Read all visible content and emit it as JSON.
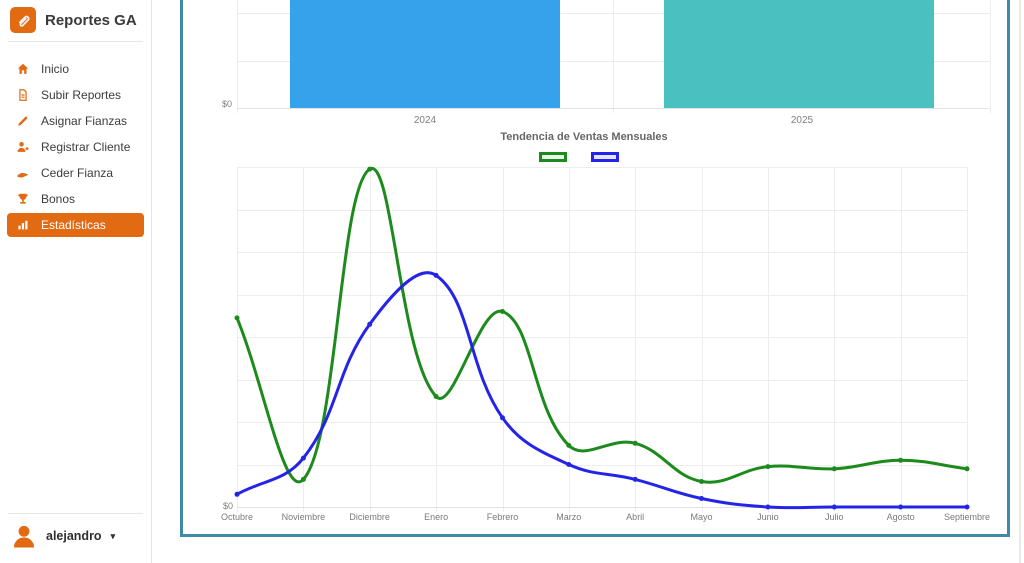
{
  "app": {
    "title": "Reportes GA"
  },
  "sidebar": {
    "items": [
      {
        "label": "Inicio",
        "icon": "home-icon",
        "active": false
      },
      {
        "label": "Subir Reportes",
        "icon": "file-icon",
        "active": false
      },
      {
        "label": "Asignar Fianzas",
        "icon": "pencil-icon",
        "active": false
      },
      {
        "label": "Registrar Cliente",
        "icon": "user-plus-icon",
        "active": false
      },
      {
        "label": "Ceder Fianza",
        "icon": "hand-icon",
        "active": false
      },
      {
        "label": "Bonos",
        "icon": "trophy-icon",
        "active": false
      },
      {
        "label": "Estadísticas",
        "icon": "bar-chart-icon",
        "active": true
      }
    ],
    "user": {
      "name": "alejandro",
      "has_dropdown": true
    }
  },
  "colors": {
    "accent_orange": "#e26a13",
    "card_border": "#4189a9",
    "bar_blue": "#36a2eb",
    "bar_teal": "#4bc0c0",
    "line_green": "#1d8a1d",
    "line_blue": "#2424e8",
    "legend_green_fill": "#eaf5ea",
    "legend_blue_fill": "#e4e4fc",
    "grid": "#ededed",
    "tick_text": "#7e7e7e"
  },
  "chart_data": [
    {
      "type": "bar",
      "categories": [
        "2024",
        "2025"
      ],
      "series": [
        {
          "name": "",
          "values": [
            null,
            null
          ]
        }
      ],
      "bar_colors": [
        "#36a2eb",
        "#4bc0c0"
      ],
      "ytick_labels_visible": [
        "$0"
      ],
      "grid": true,
      "note": "Both bars extend above the visible viewport; their top values are cropped out of the screenshot and unreadable."
    },
    {
      "type": "line",
      "title": "Tendencia de Ventas Mensuales",
      "categories": [
        "Octubre",
        "Noviembre",
        "Diciembre",
        "Enero",
        "Febrero",
        "Marzo",
        "Abril",
        "Mayo",
        "Junio",
        "Julio",
        "Agosto",
        "Septiembre"
      ],
      "series": [
        {
          "name": "",
          "color": "#1d8a1d",
          "values": [
            4.45,
            0.65,
            7.95,
            2.6,
            4.6,
            1.45,
            1.5,
            0.6,
            0.95,
            0.9,
            1.1,
            0.9
          ]
        },
        {
          "name": "",
          "color": "#2424e8",
          "values": [
            0.3,
            1.15,
            4.3,
            5.45,
            2.1,
            1.0,
            0.65,
            0.2,
            0,
            0,
            0,
            0
          ]
        }
      ],
      "ytick_labels_visible": [
        "$0"
      ],
      "y_units": "gridline intervals (currency scale, upper tick labels not visible)",
      "ylim": [
        0,
        8
      ],
      "grid": true,
      "legend_position": "top",
      "legend_labels": [
        "",
        ""
      ]
    }
  ]
}
